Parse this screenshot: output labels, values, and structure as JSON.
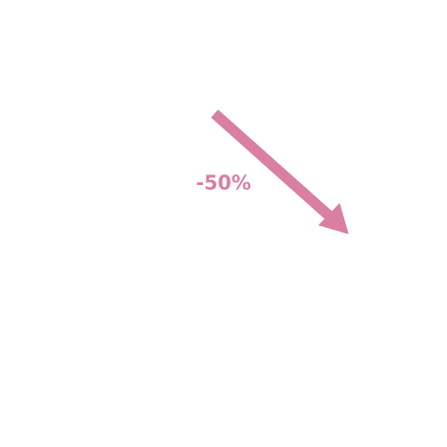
{
  "change_indicator": {
    "label": "-50%",
    "direction": "down-right",
    "icon": "arrow-down-right-icon",
    "color": "#d87fa2"
  }
}
